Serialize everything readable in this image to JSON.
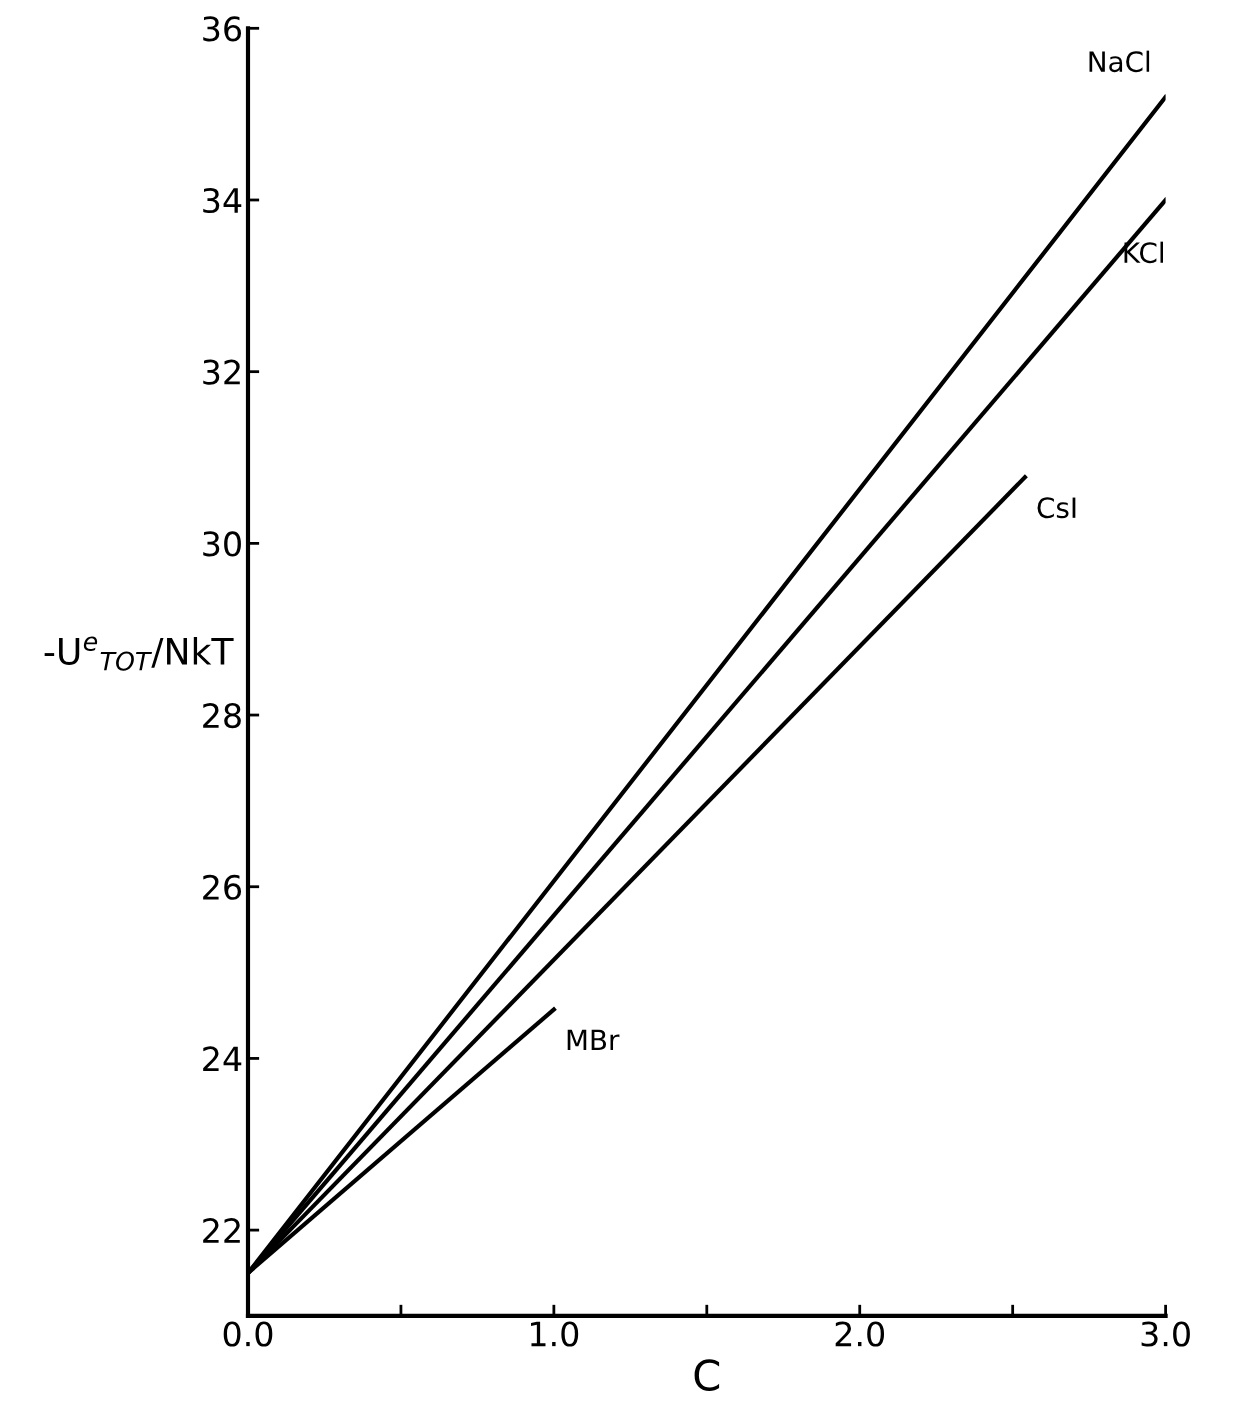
{
  "chart_data": {
    "type": "line",
    "xlabel": "C",
    "ylabel": "-U$^{e}$$_{TOT}$/NkT",
    "xlim": [
      0.0,
      3.0
    ],
    "ylim": [
      21.0,
      36.0
    ],
    "xticks": [
      {
        "value": 0.0,
        "label": "0.0"
      },
      {
        "value": 0.5,
        "label": null
      },
      {
        "value": 1.0,
        "label": "1.0"
      },
      {
        "value": 1.5,
        "label": null
      },
      {
        "value": 2.0,
        "label": "2.0"
      },
      {
        "value": 2.5,
        "label": null
      },
      {
        "value": 3.0,
        "label": "3.0"
      }
    ],
    "yticks": [
      22,
      24,
      26,
      28,
      30,
      32,
      34,
      36
    ],
    "grid": false,
    "legend": false,
    "marker": "none",
    "line_style": "solid",
    "series": [
      {
        "name": "NaCl",
        "color": "#000000",
        "x": [
          0.0,
          3.0
        ],
        "values": [
          21.5,
          35.2
        ]
      },
      {
        "name": "KCl",
        "color": "#000000",
        "x": [
          0.0,
          3.0
        ],
        "values": [
          21.5,
          34.0
        ]
      },
      {
        "name": "CsI",
        "color": "#000000",
        "x": [
          0.0,
          2.54
        ],
        "values": [
          21.5,
          30.77
        ]
      },
      {
        "name": "MBr",
        "color": "#000000",
        "x": [
          0.0,
          1.0
        ],
        "values": [
          21.5,
          24.57
        ]
      }
    ]
  }
}
